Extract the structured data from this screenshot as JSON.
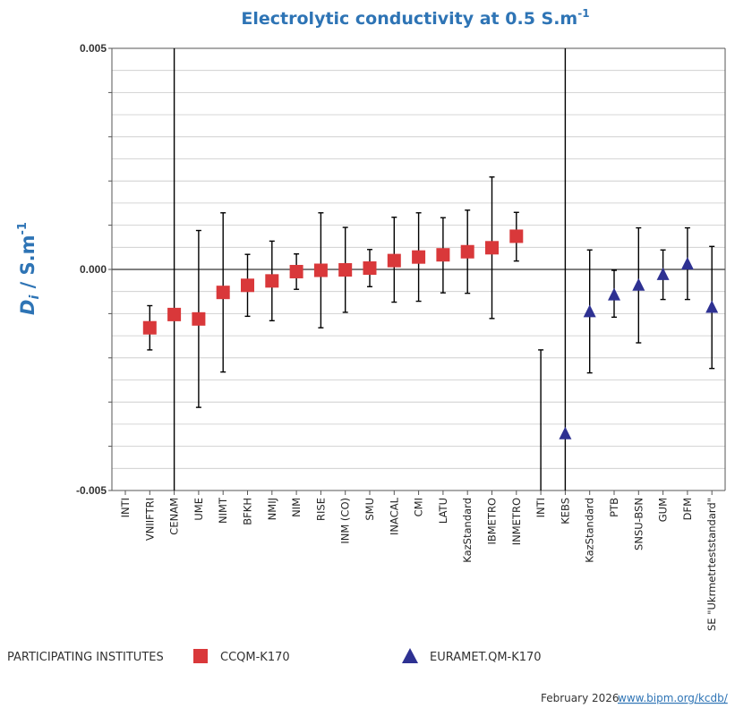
{
  "chart_data": {
    "type": "scatter",
    "title": "Electrolytic conductivity at 0.5 S.m",
    "title_superscript": "-1",
    "ylabel_main": "D",
    "ylabel_sub": "i",
    "ylabel_unit": " / S.m",
    "ylabel_superscript": "-1",
    "ylim": [
      -0.005,
      0.005
    ],
    "yticks": [
      {
        "value": 0.005,
        "label": "0.005"
      },
      {
        "value": 0.0,
        "label": "0.000"
      },
      {
        "value": -0.005,
        "label": "-0.005"
      }
    ],
    "categories": [
      "INTI",
      "VNIIFTRI",
      "CENAM",
      "UME",
      "NIMT",
      "BFKH",
      "NMIJ",
      "NIM",
      "RISE",
      "INM (CO)",
      "SMU",
      "INACAL",
      "CMI",
      "LATU",
      "KazStandard",
      "IBMETRO",
      "INMETRO",
      "INTI",
      "KEBS",
      "KazStandard",
      "PTB",
      "SNSU-BSN",
      "GUM",
      "DFM",
      "SE \"Ukrmetrteststandard\""
    ],
    "series": [
      {
        "name": "CCQM-K170",
        "marker": "square",
        "color": "#d9383a",
        "points": [
          {
            "cat": 1,
            "y": -0.00132,
            "err_low": -0.00182,
            "err_high": -0.00082
          },
          {
            "cat": 2,
            "y": -0.00102,
            "err_low": -0.0055,
            "err_high": 0.0055
          },
          {
            "cat": 3,
            "y": -0.00112,
            "err_low": -0.00312,
            "err_high": 0.00088
          },
          {
            "cat": 4,
            "y": -0.00052,
            "err_low": -0.00232,
            "err_high": 0.00128
          },
          {
            "cat": 5,
            "y": -0.00036,
            "err_low": -0.00106,
            "err_high": 0.00034
          },
          {
            "cat": 6,
            "y": -0.00026,
            "err_low": -0.00116,
            "err_high": 0.00064
          },
          {
            "cat": 7,
            "y": -5e-05,
            "err_low": -0.00045,
            "err_high": 0.00035
          },
          {
            "cat": 8,
            "y": -2e-05,
            "err_low": -0.00132,
            "err_high": 0.00128
          },
          {
            "cat": 9,
            "y": -1e-05,
            "err_low": -0.00097,
            "err_high": 0.00095
          },
          {
            "cat": 10,
            "y": 3e-05,
            "err_low": -0.00039,
            "err_high": 0.00045
          },
          {
            "cat": 11,
            "y": 0.0002,
            "err_low": -0.00074,
            "err_high": 0.00118
          },
          {
            "cat": 12,
            "y": 0.00028,
            "err_low": -0.00072,
            "err_high": 0.00128
          },
          {
            "cat": 13,
            "y": 0.00033,
            "err_low": -0.00053,
            "err_high": 0.00117
          },
          {
            "cat": 14,
            "y": 0.0004,
            "err_low": -0.00054,
            "err_high": 0.00134
          },
          {
            "cat": 15,
            "y": 0.00049,
            "err_low": -0.00111,
            "err_high": 0.00209
          },
          {
            "cat": 16,
            "y": 0.00075,
            "err_low": 0.00019,
            "err_high": 0.00129
          }
        ]
      },
      {
        "name": "EURAMET.QM-K170",
        "marker": "triangle",
        "color": "#2e3192",
        "points": [
          {
            "cat": 17,
            "y": null,
            "err_low": -0.0055,
            "err_high": -0.00182
          },
          {
            "cat": 18,
            "y": -0.00372,
            "err_low": -0.0055,
            "err_high": 0.0055
          },
          {
            "cat": 19,
            "y": -0.00096,
            "err_low": -0.00234,
            "err_high": 0.00044
          },
          {
            "cat": 20,
            "y": -0.00058,
            "err_low": -0.00108,
            "err_high": -2e-05
          },
          {
            "cat": 21,
            "y": -0.00036,
            "err_low": -0.00166,
            "err_high": 0.00094
          },
          {
            "cat": 22,
            "y": -0.00012,
            "err_low": -0.00068,
            "err_high": 0.00044
          },
          {
            "cat": 23,
            "y": 0.00012,
            "err_low": -0.00068,
            "err_high": 0.00094
          },
          {
            "cat": 24,
            "y": -0.00086,
            "err_low": -0.00224,
            "err_high": 0.00052
          }
        ]
      }
    ],
    "grid": true
  },
  "legend": {
    "heading": "PARTICIPATING INSTITUTES",
    "items": [
      {
        "label": "CCQM-K170",
        "marker": "square",
        "color": "#d9383a"
      },
      {
        "label": "EURAMET.QM-K170",
        "marker": "triangle",
        "color": "#2e3192"
      }
    ]
  },
  "footer": {
    "date": "February 2026",
    "link": "www.bipm.org/kcdb/"
  }
}
